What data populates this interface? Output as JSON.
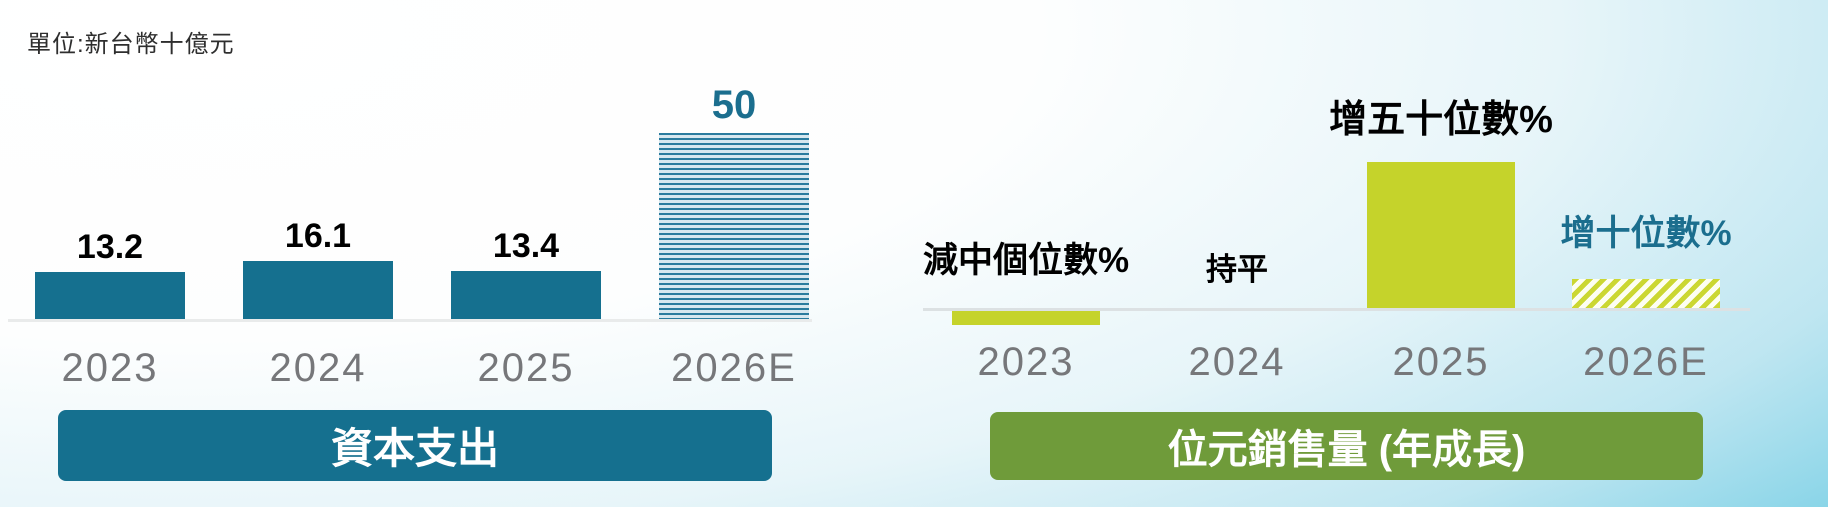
{
  "page": {
    "unit_label": "單位:新台幣十億元"
  },
  "colors": {
    "teal": "#15708F",
    "teal_text": "#1B6E8E",
    "yellow_green": "#C5D32B",
    "olive_banner": "#6F9B3A",
    "year_gray": "#76777A",
    "background_cyan": "#58C6E1"
  },
  "chart_data": [
    {
      "type": "bar",
      "title": "資本支出",
      "unit": "新台幣十億元",
      "categories": [
        "2023",
        "2024",
        "2025",
        "2026E"
      ],
      "values": [
        13.2,
        16.1,
        13.4,
        50
      ],
      "value_labels": [
        "13.2",
        "16.1",
        "13.4",
        "50"
      ],
      "estimated_flags": [
        false,
        false,
        false,
        true
      ],
      "bar_color": "#15708F",
      "estimated_bar_style": "horizontal-stripes",
      "value_label_colors": [
        "#000000",
        "#000000",
        "#000000",
        "#1B6E8E"
      ],
      "ylim": [
        0,
        50
      ],
      "grid": false,
      "legend": false
    },
    {
      "type": "bar",
      "title": "位元銷售量 (年成長)",
      "categories": [
        "2023",
        "2024",
        "2025",
        "2026E"
      ],
      "value_labels": [
        "減中個位數%",
        "持平",
        "增五十位數%",
        "增十位數%"
      ],
      "approx_values_pct": [
        -5,
        0,
        55,
        15
      ],
      "estimated_flags": [
        false,
        false,
        false,
        true
      ],
      "bar_color": "#C5D32B",
      "estimated_bar_style": "diagonal-stripes",
      "value_label_colors": [
        "#000000",
        "#000000",
        "#000000",
        "#1B6E8E"
      ],
      "grid": false,
      "legend": false
    }
  ]
}
